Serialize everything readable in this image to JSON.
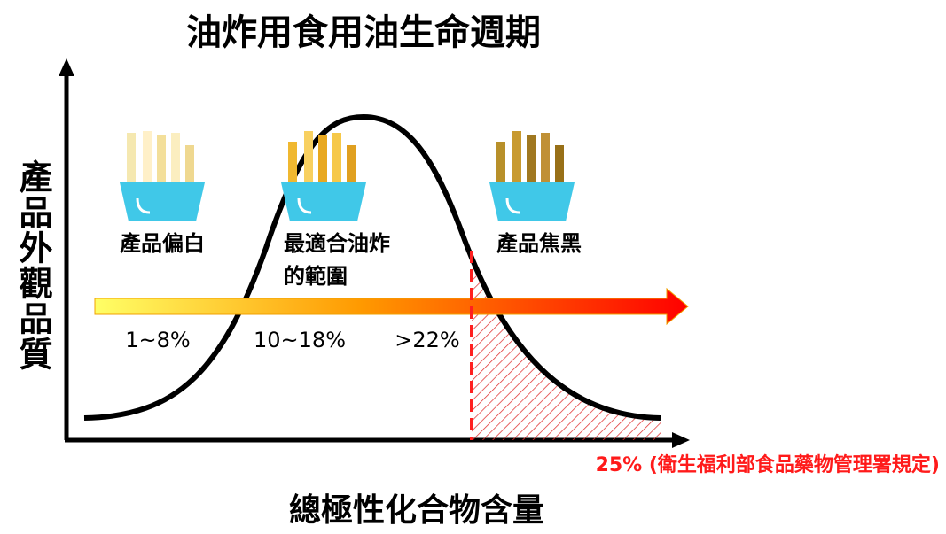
{
  "title": "油炸用食用油生命週期",
  "y_axis_label": "產品外觀品質",
  "x_axis_label": "總極性化合物含量",
  "stages": [
    {
      "label_lines": [
        "產品偏白"
      ]
    },
    {
      "label_lines": [
        "最適合油炸",
        "的範圍"
      ]
    },
    {
      "label_lines": [
        "產品焦黑"
      ]
    }
  ],
  "ranges": [
    "1~8%",
    "10~18%",
    ">22%"
  ],
  "threshold": "25% (衛生福利部食品藥物管理署規定)"
}
